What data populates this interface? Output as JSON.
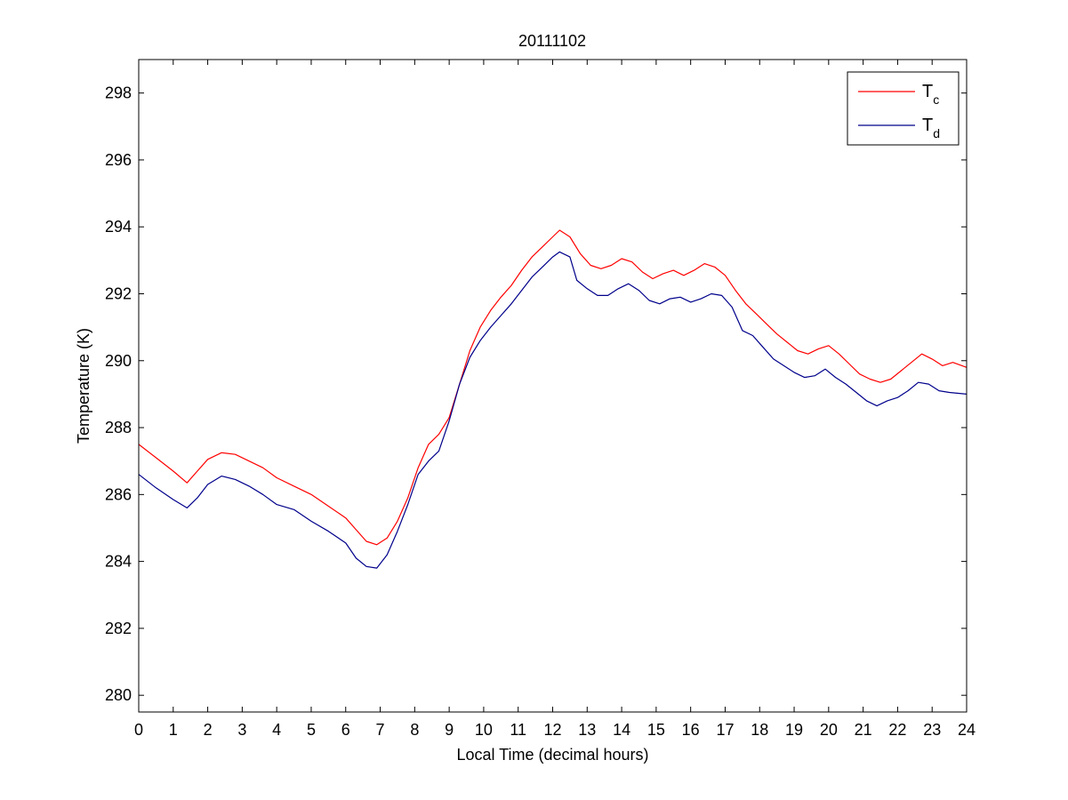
{
  "chart_data": {
    "type": "line",
    "title": "20111102",
    "xlabel": "Local Time (decimal hours)",
    "ylabel": "Temperature (K)",
    "xlim": [
      0,
      24
    ],
    "ylim": [
      279.5,
      299
    ],
    "xticks": [
      0,
      1,
      2,
      3,
      4,
      5,
      6,
      7,
      8,
      9,
      10,
      11,
      12,
      13,
      14,
      15,
      16,
      17,
      18,
      19,
      20,
      21,
      22,
      23,
      24
    ],
    "yticks": [
      280,
      282,
      284,
      286,
      288,
      290,
      292,
      294,
      296,
      298
    ],
    "grid": false,
    "legend_position": "top-right",
    "series": [
      {
        "name": "T",
        "subscript": "c",
        "color": "#ff0000",
        "x": [
          0,
          0.5,
          1,
          1.4,
          1.7,
          2,
          2.4,
          2.8,
          3.2,
          3.6,
          4,
          4.5,
          5,
          5.5,
          6,
          6.3,
          6.6,
          6.9,
          7.2,
          7.5,
          7.8,
          8.1,
          8.4,
          8.7,
          9,
          9.3,
          9.6,
          9.9,
          10.2,
          10.5,
          10.8,
          11.1,
          11.4,
          11.7,
          12,
          12.2,
          12.5,
          12.8,
          13.1,
          13.4,
          13.7,
          14,
          14.3,
          14.6,
          14.9,
          15.2,
          15.5,
          15.8,
          16.1,
          16.4,
          16.7,
          17,
          17.3,
          17.6,
          17.9,
          18.2,
          18.5,
          18.8,
          19.1,
          19.4,
          19.7,
          20,
          20.3,
          20.6,
          20.9,
          21.2,
          21.5,
          21.8,
          22.1,
          22.4,
          22.7,
          23,
          23.3,
          23.6,
          24
        ],
        "y": [
          287.5,
          287.1,
          286.7,
          286.35,
          286.7,
          287.05,
          287.25,
          287.2,
          287.0,
          286.8,
          286.5,
          286.25,
          286.0,
          285.65,
          285.3,
          284.95,
          284.6,
          284.5,
          284.7,
          285.2,
          285.9,
          286.8,
          287.5,
          287.8,
          288.3,
          289.3,
          290.3,
          291.0,
          291.5,
          291.9,
          292.25,
          292.7,
          293.1,
          293.4,
          293.7,
          293.9,
          293.7,
          293.2,
          292.85,
          292.75,
          292.85,
          293.05,
          292.95,
          292.65,
          292.45,
          292.6,
          292.7,
          292.55,
          292.7,
          292.9,
          292.8,
          292.55,
          292.1,
          291.7,
          291.4,
          291.1,
          290.8,
          290.55,
          290.3,
          290.2,
          290.35,
          290.45,
          290.2,
          289.9,
          289.6,
          289.45,
          289.35,
          289.45,
          289.7,
          289.95,
          290.2,
          290.05,
          289.85,
          289.95,
          289.8
        ]
      },
      {
        "name": "T",
        "subscript": "d",
        "color": "#00008b",
        "x": [
          0,
          0.5,
          1,
          1.4,
          1.7,
          2,
          2.4,
          2.8,
          3.2,
          3.6,
          4,
          4.5,
          5,
          5.5,
          6,
          6.3,
          6.6,
          6.9,
          7.2,
          7.5,
          7.8,
          8.1,
          8.4,
          8.7,
          9,
          9.3,
          9.6,
          9.9,
          10.2,
          10.5,
          10.8,
          11.1,
          11.4,
          11.7,
          12,
          12.2,
          12.5,
          12.7,
          13,
          13.3,
          13.6,
          13.9,
          14.2,
          14.5,
          14.8,
          15.1,
          15.4,
          15.7,
          16,
          16.3,
          16.6,
          16.9,
          17.2,
          17.5,
          17.8,
          18.1,
          18.4,
          18.7,
          19,
          19.3,
          19.6,
          19.9,
          20.2,
          20.5,
          20.8,
          21.1,
          21.4,
          21.7,
          22,
          22.3,
          22.6,
          22.9,
          23.2,
          23.5,
          24
        ],
        "y": [
          286.6,
          286.2,
          285.85,
          285.6,
          285.9,
          286.3,
          286.55,
          286.45,
          286.25,
          286.0,
          285.7,
          285.55,
          285.2,
          284.9,
          284.55,
          284.1,
          283.85,
          283.8,
          284.2,
          284.9,
          285.7,
          286.6,
          287.0,
          287.3,
          288.2,
          289.3,
          290.1,
          290.6,
          291.0,
          291.35,
          291.7,
          292.1,
          292.5,
          292.8,
          293.1,
          293.25,
          293.1,
          292.4,
          292.15,
          291.95,
          291.95,
          292.15,
          292.3,
          292.1,
          291.8,
          291.7,
          291.85,
          291.9,
          291.75,
          291.85,
          292.0,
          291.95,
          291.6,
          290.9,
          290.75,
          290.4,
          290.05,
          289.85,
          289.65,
          289.5,
          289.55,
          289.75,
          289.5,
          289.3,
          289.05,
          288.8,
          288.65,
          288.8,
          288.9,
          289.1,
          289.35,
          289.3,
          289.1,
          289.05,
          289.0
        ]
      }
    ]
  }
}
